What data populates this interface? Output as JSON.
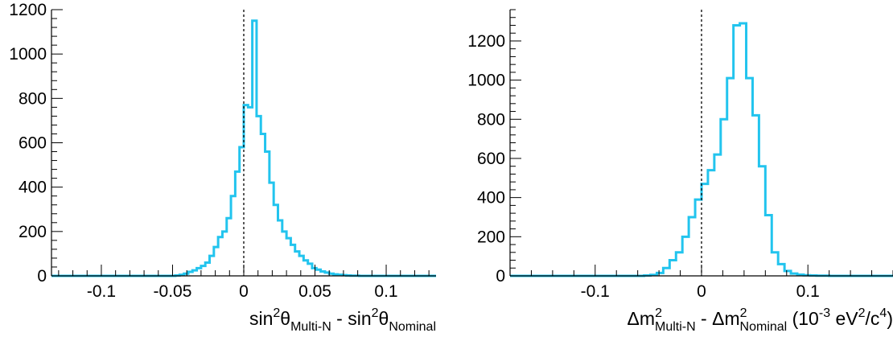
{
  "chart_data": [
    {
      "type": "histogram",
      "xlabel": {
        "parts": [
          {
            "text": "sin",
            "style": "normal"
          },
          {
            "text": "2",
            "style": "sup"
          },
          {
            "text": "θ",
            "style": "normal"
          },
          {
            "text": "Multi-N",
            "style": "sub"
          },
          {
            "text": " - sin",
            "style": "normal"
          },
          {
            "text": "2",
            "style": "sup"
          },
          {
            "text": "θ",
            "style": "normal"
          },
          {
            "text": "Nominal",
            "style": "sub"
          }
        ]
      },
      "ylabel": "",
      "xlim": [
        -0.135,
        0.135
      ],
      "ylim": [
        0,
        1200
      ],
      "xticks": [
        -0.1,
        -0.05,
        0,
        0.05,
        0.1
      ],
      "xtick_labels": [
        "-0.1",
        "-0.05",
        "0",
        "0.05",
        "0.1"
      ],
      "yticks": [
        0,
        200,
        400,
        600,
        800,
        1000,
        1200
      ],
      "ytick_labels": [
        "0",
        "200",
        "400",
        "600",
        "800",
        "1000",
        "1200"
      ],
      "reference_line_x": 0,
      "bin_width": 0.003,
      "bin_start": -0.135,
      "color": "#22c4ee",
      "values": [
        0,
        0,
        0,
        0,
        0,
        0,
        0,
        0,
        0,
        0,
        0,
        0,
        0,
        0,
        0,
        0,
        0,
        0,
        0,
        0,
        0,
        0,
        0,
        0,
        0,
        0,
        0,
        0,
        0,
        2,
        5,
        10,
        18,
        25,
        35,
        45,
        60,
        90,
        130,
        175,
        200,
        260,
        360,
        470,
        580,
        770,
        760,
        1150,
        720,
        640,
        560,
        420,
        320,
        250,
        200,
        170,
        140,
        110,
        90,
        70,
        55,
        35,
        28,
        20,
        15,
        10,
        7,
        5,
        3,
        2,
        1,
        1,
        0,
        0,
        0,
        0,
        0,
        0,
        0,
        0,
        0,
        0,
        0,
        0,
        0,
        0,
        0,
        0,
        0,
        0
      ]
    },
    {
      "type": "histogram",
      "xlabel": {
        "parts": [
          {
            "text": "Δm",
            "style": "normal"
          },
          {
            "text": "2",
            "style": "supsub"
          },
          {
            "text": "Multi-N",
            "style": "sub"
          },
          {
            "text": " - Δm",
            "style": "normal"
          },
          {
            "text": "2",
            "style": "supsub"
          },
          {
            "text": "Nominal",
            "style": "sub"
          },
          {
            "text": " (10",
            "style": "normal"
          },
          {
            "text": "-3",
            "style": "sup"
          },
          {
            "text": " eV",
            "style": "normal"
          },
          {
            "text": "2",
            "style": "sup"
          },
          {
            "text": "/c",
            "style": "normal"
          },
          {
            "text": "4",
            "style": "sup"
          },
          {
            "text": ")",
            "style": "normal"
          }
        ]
      },
      "ylabel": "",
      "xlim": [
        -0.18,
        0.18
      ],
      "ylim": [
        0,
        1360
      ],
      "xticks": [
        -0.1,
        0,
        0.1
      ],
      "xtick_labels": [
        "-0.1",
        "0",
        "0.1"
      ],
      "yticks": [
        0,
        200,
        400,
        600,
        800,
        1000,
        1200
      ],
      "ytick_labels": [
        "0",
        "200",
        "400",
        "600",
        "800",
        "1000",
        "1200"
      ],
      "reference_line_x": 0,
      "bin_width": 0.006,
      "bin_start": -0.18,
      "color": "#22c4ee",
      "values": [
        0,
        0,
        0,
        0,
        0,
        0,
        0,
        0,
        0,
        0,
        0,
        0,
        0,
        0,
        0,
        0,
        0,
        0,
        0,
        0,
        0,
        2,
        5,
        15,
        40,
        80,
        120,
        200,
        300,
        390,
        470,
        540,
        620,
        800,
        1010,
        1280,
        1290,
        1010,
        820,
        560,
        310,
        120,
        60,
        25,
        12,
        6,
        3,
        2,
        1,
        1,
        0,
        0,
        0,
        0,
        0,
        0,
        0,
        0,
        0,
        0
      ]
    }
  ]
}
